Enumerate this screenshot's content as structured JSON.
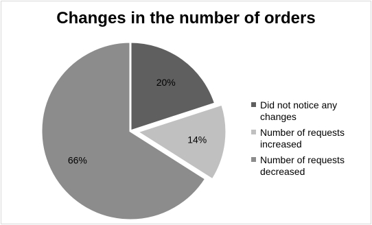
{
  "chart_data": {
    "type": "pie",
    "title": "Changes in the number of orders",
    "slices": [
      {
        "label": "Did not notice any changes",
        "value": 20,
        "data_label": "20%",
        "color": "#5f5f5f",
        "exploded": false
      },
      {
        "label": "Number of requests increased",
        "value": 14,
        "data_label": "14%",
        "color": "#c0c0c0",
        "exploded": true
      },
      {
        "label": "Number of requests decreased",
        "value": 66,
        "data_label": "66%",
        "color": "#8c8c8c",
        "exploded": false
      }
    ],
    "legend_position": "right"
  }
}
